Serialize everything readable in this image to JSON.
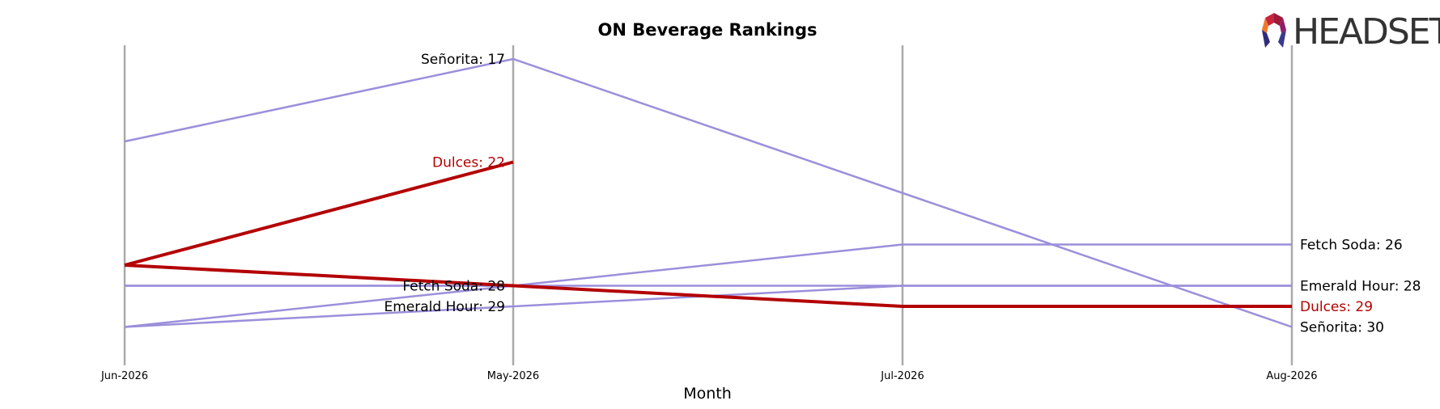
{
  "logo": {
    "text": "HEADSET"
  },
  "chart_data": {
    "type": "line",
    "title": "ON Beverage Rankings",
    "xlabel": "Month",
    "ylabel": "",
    "categories": [
      "Jun-2026",
      "May-2026",
      "Jul-2026",
      "Aug-2026"
    ],
    "ylim": [
      33,
      15
    ],
    "y_inverted": true,
    "grid": false,
    "legend": "none",
    "series": [
      {
        "name": "Señorita",
        "values": [
          21,
          17,
          null,
          30
        ],
        "color": "#9b8fdb",
        "highlight": false
      },
      {
        "name": "Fetch Soda",
        "values": [
          28,
          28,
          26,
          26
        ],
        "color": "#9b8fdb",
        "highlight": false
      },
      {
        "name": "Emerald Hour",
        "values": [
          30,
          29,
          28,
          28
        ],
        "color": "#9b8fdb",
        "highlight": false
      },
      {
        "name": "Dulces",
        "values": [
          27,
          22,
          null,
          null
        ],
        "color": "#b30000",
        "highlight": true
      },
      {
        "name": "Dulces",
        "values": [
          27,
          28,
          29,
          29
        ],
        "color": "#b30000",
        "highlight": true
      },
      {
        "name": "Emerald Hour",
        "values": [
          28,
          28,
          null,
          28
        ],
        "color": "#9b8fdb",
        "highlight": false
      },
      {
        "name": "Señorita",
        "values": [
          30,
          28,
          null,
          null
        ],
        "color": "#9b8fdb",
        "highlight": false
      }
    ],
    "left_labels": [
      {
        "text": "Señorita: 17",
        "series": "Señorita",
        "value": 17,
        "color": "#000000"
      },
      {
        "text": "Dulces: 22",
        "series": "Dulces",
        "value": 22,
        "color": "#b30000"
      },
      {
        "text": "Fetch Soda: 28",
        "series": "Fetch Soda",
        "value": 28,
        "color": "#000000"
      },
      {
        "text": "Emerald Hour: 29",
        "series": "Emerald Hour",
        "value": 29,
        "color": "#000000"
      }
    ],
    "right_labels": [
      {
        "text": "Fetch Soda: 26",
        "series": "Fetch Soda",
        "value": 26,
        "color": "#000000"
      },
      {
        "text": "Emerald Hour: 28",
        "series": "Emerald Hour",
        "value": 28,
        "color": "#000000"
      },
      {
        "text": "Dulces: 29",
        "series": "Dulces",
        "value": 29,
        "color": "#b30000"
      },
      {
        "text": "Señorita: 30",
        "series": "Señorita",
        "value": 30,
        "color": "#000000"
      }
    ]
  }
}
